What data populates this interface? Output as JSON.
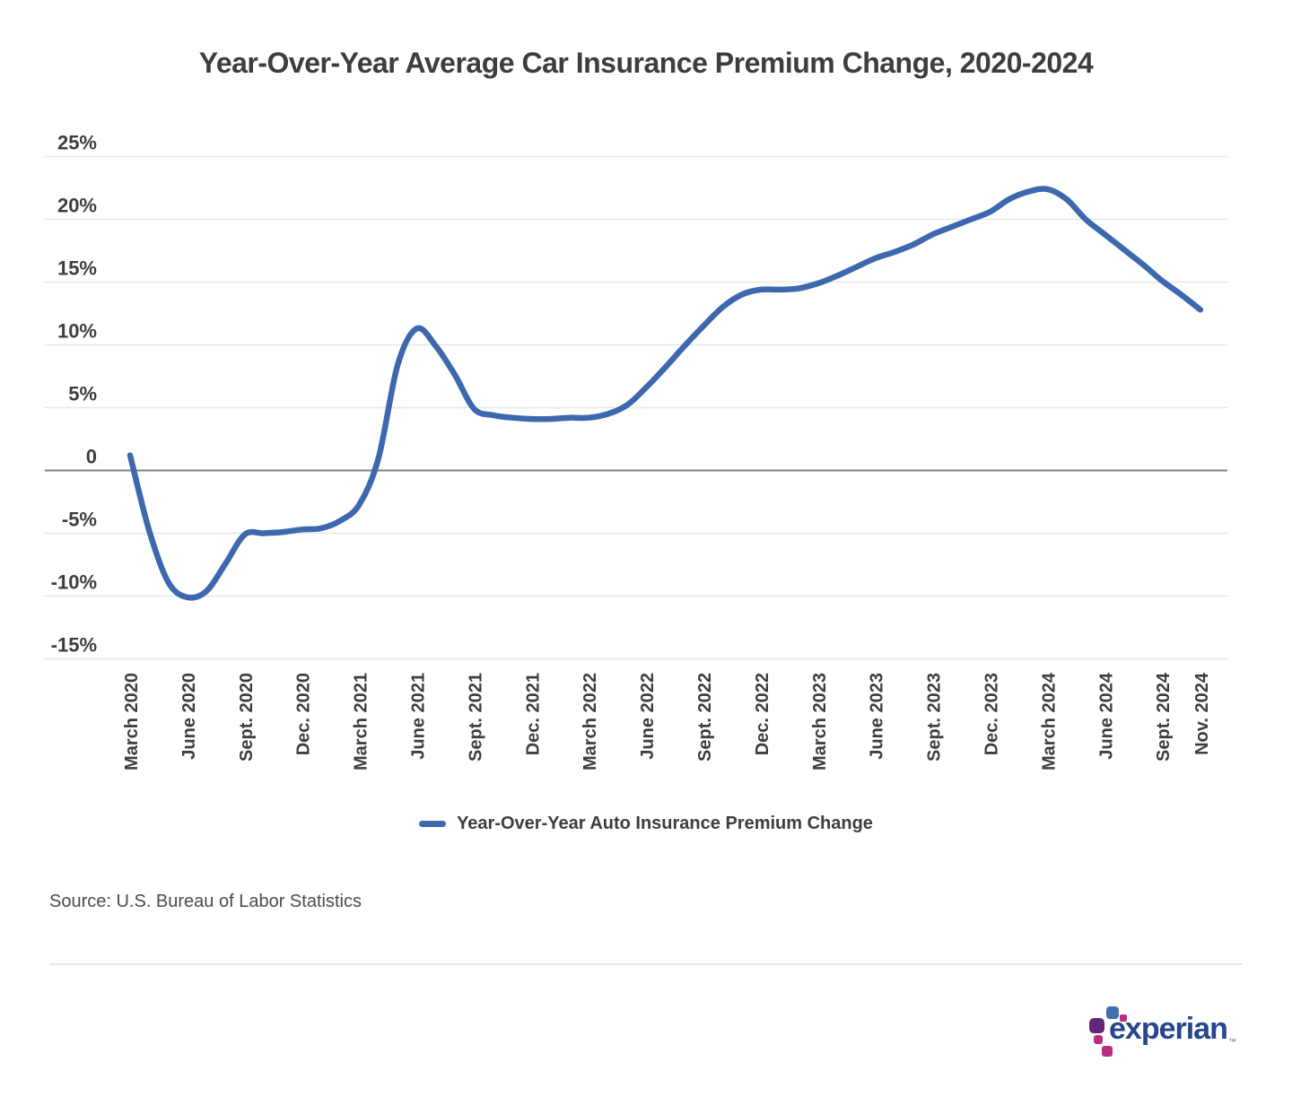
{
  "title": "Year-Over-Year Average Car Insurance Premium Change, 2020-2024",
  "legend": {
    "label": "Year-Over-Year Auto Insurance Premium Change"
  },
  "source_note": "Source: U.S. Bureau of Labor Statistics",
  "brand": {
    "name": "experian",
    "trademark": "™"
  },
  "colors": {
    "line": "#3d68ae",
    "title_text": "#3d3d3d",
    "tick_text": "#3d3d3d",
    "gridline": "#e7e7e7",
    "zero_line": "#7f7f7f",
    "brand_blue": "#26478d",
    "brand_purple": "#632678",
    "brand_magenta": "#ba2f7d",
    "brand_light_blue": "#406eb3"
  },
  "chart_data": {
    "type": "line",
    "title": "Year-Over-Year Average Car Insurance Premium Change, 2020-2024",
    "grid": "horizontal",
    "legend_position": "bottom-center",
    "y_axis": {
      "ylim": [
        -15,
        25
      ],
      "ticks": [
        25,
        20,
        15,
        10,
        5,
        0,
        -5,
        -10,
        -15
      ],
      "tick_labels": [
        "25%",
        "20%",
        "15%",
        "10%",
        "5%",
        "0",
        "-5%",
        "-10%",
        "-15%"
      ]
    },
    "x_axis": {
      "tick_labels": [
        "March 2020",
        "June 2020",
        "Sept. 2020",
        "Dec. 2020",
        "March 2021",
        "June 2021",
        "Sept. 2021",
        "Dec. 2021",
        "March 2022",
        "June 2022",
        "Sept. 2022",
        "Dec. 2022",
        "March 2023",
        "June 2023",
        "Sept. 2023",
        "Dec. 2023",
        "March 2024",
        "June 2024",
        "Sept. 2024",
        "Nov. 2024"
      ],
      "tick_month_index": [
        0,
        3,
        6,
        9,
        12,
        15,
        18,
        21,
        24,
        27,
        30,
        33,
        36,
        39,
        42,
        45,
        48,
        51,
        54,
        56
      ]
    },
    "series": [
      {
        "name": "Year-Over-Year Auto Insurance Premium Change",
        "color": "#3d68ae",
        "months": [
          "2020-03",
          "2020-04",
          "2020-05",
          "2020-06",
          "2020-07",
          "2020-08",
          "2020-09",
          "2020-10",
          "2020-11",
          "2020-12",
          "2021-01",
          "2021-02",
          "2021-03",
          "2021-04",
          "2021-05",
          "2021-06",
          "2021-07",
          "2021-08",
          "2021-09",
          "2021-10",
          "2021-11",
          "2021-12",
          "2022-01",
          "2022-02",
          "2022-03",
          "2022-04",
          "2022-05",
          "2022-06",
          "2022-07",
          "2022-08",
          "2022-09",
          "2022-10",
          "2022-11",
          "2022-12",
          "2023-01",
          "2023-02",
          "2023-03",
          "2023-04",
          "2023-05",
          "2023-06",
          "2023-07",
          "2023-08",
          "2023-09",
          "2023-10",
          "2023-11",
          "2023-12",
          "2024-01",
          "2024-02",
          "2024-03",
          "2024-04",
          "2024-05",
          "2024-06",
          "2024-07",
          "2024-08",
          "2024-09",
          "2024-10",
          "2024-11"
        ],
        "values": [
          1.2,
          -4.8,
          -8.9,
          -10.1,
          -9.6,
          -7.4,
          -5.1,
          -5.0,
          -4.9,
          -4.7,
          -4.6,
          -4.0,
          -2.7,
          1.0,
          8.4,
          11.3,
          9.9,
          7.6,
          4.9,
          4.4,
          4.2,
          4.1,
          4.1,
          4.2,
          4.2,
          4.5,
          5.2,
          6.6,
          8.2,
          9.9,
          11.5,
          13.0,
          14.0,
          14.4,
          14.4,
          14.5,
          14.9,
          15.5,
          16.2,
          16.9,
          17.4,
          18.0,
          18.8,
          19.4,
          20.0,
          20.6,
          21.6,
          22.2,
          22.4,
          21.6,
          20.0,
          18.8,
          17.6,
          16.4,
          15.1,
          14.0,
          12.8
        ]
      }
    ]
  }
}
